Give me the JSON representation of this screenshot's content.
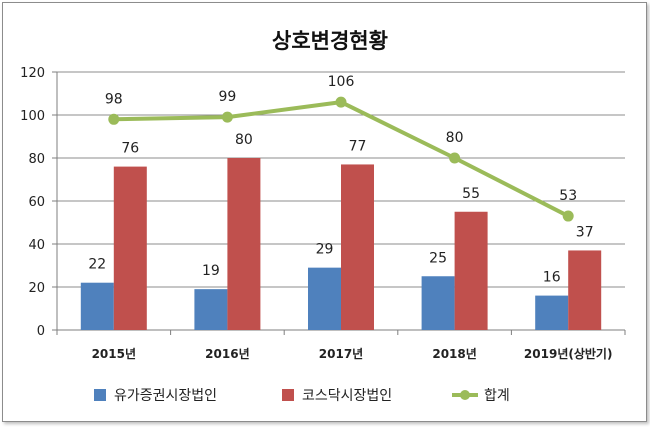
{
  "chart_data": {
    "type": "bar",
    "title": "상호변경현황",
    "categories": [
      "2015년",
      "2016년",
      "2017년",
      "2018년",
      "2019년(상반기)"
    ],
    "series": [
      {
        "name": "유가증권시장법인",
        "type": "bar",
        "color": "#4f81bd",
        "values": [
          22,
          19,
          29,
          25,
          16
        ]
      },
      {
        "name": "코스닥시장법인",
        "type": "bar",
        "color": "#c0504d",
        "values": [
          76,
          80,
          77,
          55,
          37
        ]
      },
      {
        "name": "합계",
        "type": "line",
        "color": "#9bbb59",
        "values": [
          98,
          99,
          106,
          80,
          53
        ]
      }
    ],
    "ylim": [
      0,
      120
    ],
    "yticks": [
      0,
      20,
      40,
      60,
      80,
      100,
      120
    ],
    "grid": true,
    "legend": "bottom"
  }
}
